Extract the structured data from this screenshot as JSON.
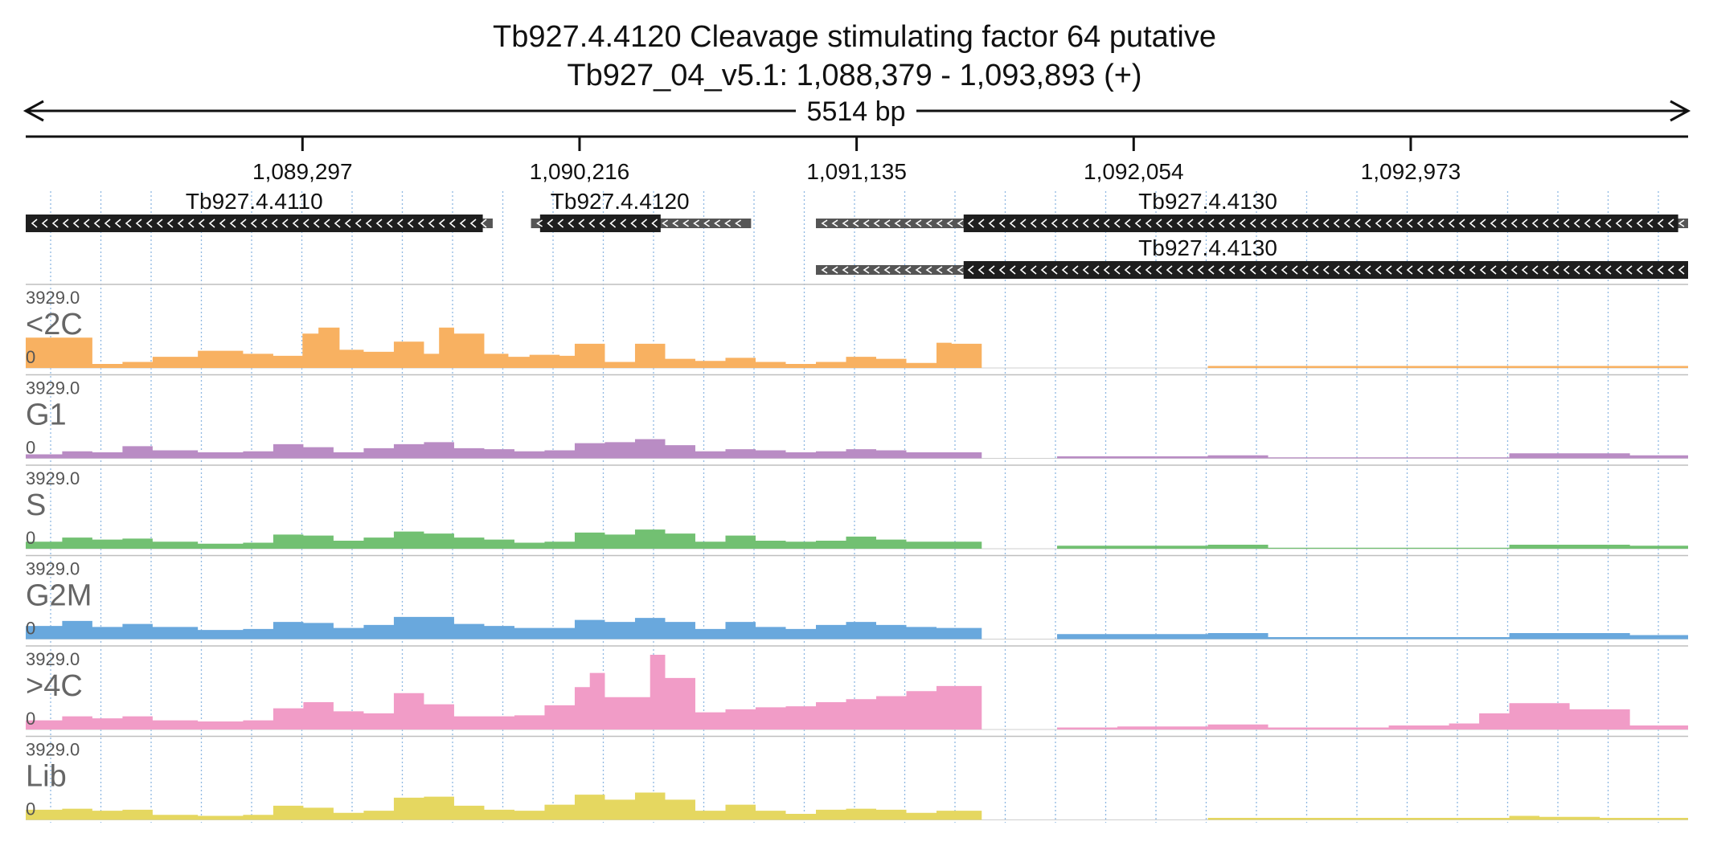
{
  "header": {
    "title": "Tb927.4.4120  Cleavage stimulating factor 64  putative",
    "locus": "Tb927_04_v5.1: 1,088,379 - 1,093,893 (+)",
    "span_label": "5514 bp"
  },
  "chart_data": {
    "type": "area",
    "title": "Tb927.4.4120  Cleavage stimulating factor 64  putative",
    "subtitle": "Tb927_04_v5.1: 1,088,379 - 1,093,893 (+)",
    "xlim": [
      1088379,
      1093893
    ],
    "x_ticks": [
      1089297,
      1090216,
      1091135,
      1092054,
      1092973
    ],
    "x_tick_labels": [
      "1,089,297",
      "1,090,216",
      "1,091,135",
      "1,092,054",
      "1,092,973"
    ],
    "genes": [
      {
        "name": "Tb927.4.4110",
        "strand": "-",
        "utr": [
          1088379,
          1089928
        ],
        "cds": [
          1088379,
          1089895
        ],
        "row": 0
      },
      {
        "name": "Tb927.4.4120",
        "strand": "-",
        "utr": [
          1090055,
          1090785
        ],
        "cds": [
          1090085,
          1090485
        ],
        "row": 0
      },
      {
        "name": "Tb927.4.4130",
        "strand": "-",
        "utr": [
          1091000,
          1093893
        ],
        "cds": [
          1091490,
          1093860
        ],
        "row": 0
      },
      {
        "name": "Tb927.4.4130",
        "strand": "-",
        "utr": [
          1091000,
          1093893
        ],
        "cds": [
          1091490,
          1093893
        ],
        "row": 1
      }
    ],
    "track_max_label": "3929.0",
    "track_min_label": "0",
    "ylim": [
      0,
      3929.0
    ],
    "series": [
      {
        "name": "<2C",
        "color": "#f8b161",
        "x": [
          1088379,
          1088600,
          1088700,
          1088800,
          1088950,
          1089100,
          1089200,
          1089297,
          1089350,
          1089420,
          1089500,
          1089600,
          1089700,
          1089750,
          1089800,
          1089900,
          1089980,
          1090050,
          1090150,
          1090200,
          1090300,
          1090400,
          1090500,
          1090600,
          1090700,
          1090800,
          1090900,
          1091000,
          1091100,
          1091200,
          1091300,
          1091400,
          1091450,
          1091550,
          1092200,
          1092300,
          1093893
        ],
        "values": [
          1500,
          200,
          300,
          550,
          850,
          700,
          600,
          1700,
          2000,
          900,
          800,
          1300,
          700,
          2000,
          1700,
          700,
          550,
          650,
          600,
          1200,
          300,
          1200,
          450,
          350,
          500,
          300,
          200,
          300,
          550,
          450,
          250,
          1250,
          1200,
          0,
          0,
          100,
          0
        ]
      },
      {
        "name": "G1",
        "color": "#b98cc4",
        "x": [
          1088379,
          1088500,
          1088600,
          1088700,
          1088800,
          1088950,
          1089100,
          1089200,
          1089300,
          1089400,
          1089500,
          1089600,
          1089700,
          1089800,
          1089900,
          1090000,
          1090100,
          1090200,
          1090300,
          1090400,
          1090500,
          1090600,
          1090700,
          1090800,
          1090900,
          1091000,
          1091100,
          1091200,
          1091300,
          1091400,
          1091550,
          1091800,
          1092000,
          1092300,
          1092500,
          1093300,
          1093500,
          1093700,
          1093893
        ],
        "values": [
          200,
          350,
          300,
          600,
          400,
          300,
          350,
          700,
          550,
          300,
          500,
          700,
          800,
          500,
          450,
          350,
          400,
          750,
          800,
          950,
          650,
          350,
          450,
          400,
          300,
          350,
          450,
          400,
          300,
          300,
          0,
          100,
          100,
          150,
          50,
          250,
          250,
          150,
          300
        ]
      },
      {
        "name": "S",
        "color": "#72c072",
        "x": [
          1088379,
          1088500,
          1088600,
          1088700,
          1088800,
          1088950,
          1089100,
          1089200,
          1089300,
          1089400,
          1089500,
          1089600,
          1089700,
          1089800,
          1089900,
          1090000,
          1090100,
          1090200,
          1090300,
          1090400,
          1090500,
          1090600,
          1090700,
          1090800,
          1090900,
          1091000,
          1091100,
          1091200,
          1091300,
          1091400,
          1091550,
          1091800,
          1092000,
          1092300,
          1092500,
          1093300,
          1093500,
          1093700,
          1093893
        ],
        "values": [
          350,
          550,
          450,
          500,
          350,
          250,
          300,
          700,
          650,
          400,
          550,
          850,
          750,
          550,
          450,
          300,
          350,
          800,
          700,
          950,
          750,
          350,
          650,
          400,
          350,
          400,
          600,
          450,
          350,
          350,
          0,
          150,
          150,
          200,
          50,
          200,
          200,
          150,
          450
        ]
      },
      {
        "name": "G2M",
        "color": "#69a8dd",
        "x": [
          1088379,
          1088500,
          1088600,
          1088700,
          1088800,
          1088950,
          1089100,
          1089200,
          1089300,
          1089400,
          1089500,
          1089600,
          1089700,
          1089800,
          1089900,
          1090000,
          1090100,
          1090200,
          1090300,
          1090400,
          1090500,
          1090600,
          1090700,
          1090800,
          1090900,
          1091000,
          1091100,
          1091200,
          1091300,
          1091400,
          1091550,
          1091800,
          1092000,
          1092300,
          1092500,
          1093300,
          1093500,
          1093700,
          1093893
        ],
        "values": [
          650,
          900,
          600,
          750,
          600,
          450,
          500,
          850,
          800,
          550,
          700,
          1100,
          1100,
          750,
          650,
          550,
          550,
          950,
          850,
          1050,
          850,
          500,
          850,
          600,
          500,
          700,
          850,
          700,
          600,
          550,
          0,
          250,
          250,
          300,
          100,
          300,
          300,
          200,
          300
        ]
      },
      {
        "name": ">4C",
        "color": "#f19cc7",
        "x": [
          1088379,
          1088500,
          1088600,
          1088700,
          1088800,
          1088950,
          1089100,
          1089200,
          1089300,
          1089400,
          1089500,
          1089600,
          1089700,
          1089800,
          1089900,
          1090000,
          1090100,
          1090200,
          1090250,
          1090300,
          1090400,
          1090450,
          1090500,
          1090600,
          1090700,
          1090800,
          1090900,
          1091000,
          1091100,
          1091200,
          1091300,
          1091400,
          1091550,
          1091800,
          1092000,
          1092300,
          1092500,
          1092900,
          1093100,
          1093200,
          1093300,
          1093500,
          1093700,
          1093893
        ],
        "values": [
          450,
          650,
          550,
          650,
          450,
          400,
          450,
          1050,
          1350,
          900,
          800,
          1800,
          1250,
          650,
          650,
          700,
          1200,
          2100,
          2800,
          1600,
          1600,
          3700,
          2550,
          850,
          1000,
          1100,
          1150,
          1350,
          1500,
          1650,
          1900,
          2150,
          0,
          100,
          150,
          250,
          100,
          200,
          300,
          800,
          1300,
          1000,
          200,
          200
        ]
      },
      {
        "name": "Lib",
        "color": "#e5d760",
        "x": [
          1088379,
          1088500,
          1088600,
          1088700,
          1088800,
          1088950,
          1089100,
          1089200,
          1089300,
          1089400,
          1089500,
          1089600,
          1089700,
          1089800,
          1089900,
          1090000,
          1090100,
          1090200,
          1090300,
          1090400,
          1090500,
          1090600,
          1090700,
          1090800,
          1090900,
          1091000,
          1091100,
          1091200,
          1091300,
          1091400,
          1091550,
          1092200,
          1092300,
          1093300,
          1093400,
          1093600,
          1093893
        ],
        "values": [
          500,
          550,
          450,
          500,
          250,
          200,
          250,
          700,
          600,
          350,
          450,
          1100,
          1150,
          700,
          500,
          450,
          750,
          1250,
          1000,
          1350,
          1000,
          450,
          750,
          450,
          300,
          500,
          550,
          500,
          350,
          450,
          0,
          0,
          100,
          200,
          150,
          100,
          300
        ]
      }
    ]
  }
}
